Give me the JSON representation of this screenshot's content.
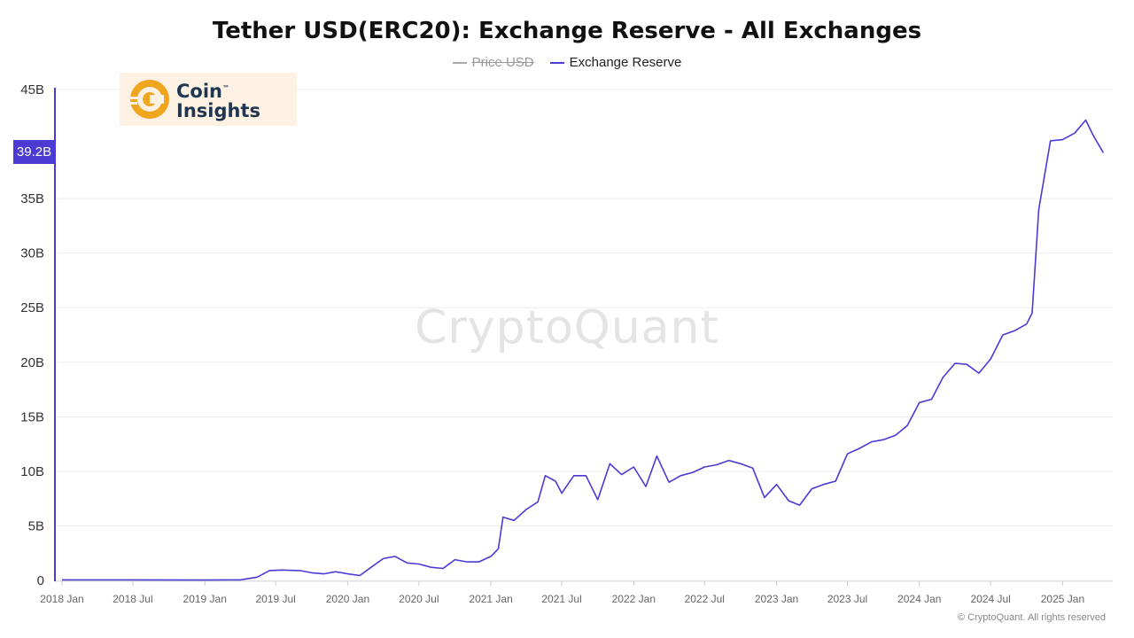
{
  "chart_data": {
    "type": "line",
    "title": "Tether USD(ERC20): Exchange Reserve - All Exchanges",
    "legend": [
      {
        "name": "Price USD",
        "color": "#aaaaaa",
        "hidden": true
      },
      {
        "name": "Exchange Reserve",
        "color": "#4b3ad3",
        "hidden": false
      }
    ],
    "legend_position": "top-center",
    "current_value_label": "39.2B",
    "y_ticks": [
      "0",
      "5B",
      "10B",
      "15B",
      "20B",
      "25B",
      "30B",
      "35B",
      "45B"
    ],
    "y_tick_values": [
      0,
      5,
      10,
      15,
      20,
      25,
      30,
      35,
      45
    ],
    "ylim": [
      0,
      45
    ],
    "y_unit": "billions USD",
    "x_ticks": [
      "2018 Jan",
      "2018 Jul",
      "2019 Jan",
      "2019 Jul",
      "2020 Jan",
      "2020 Jul",
      "2021 Jan",
      "2021 Jul",
      "2022 Jan",
      "2022 Jul",
      "2023 Jan",
      "2023 Jul",
      "2024 Jan",
      "2024 Jul",
      "2025 Jan"
    ],
    "x_tick_dates": [
      "2018-01-01",
      "2018-07-01",
      "2019-01-01",
      "2019-07-01",
      "2020-01-01",
      "2020-07-01",
      "2021-01-01",
      "2021-07-01",
      "2022-01-01",
      "2022-07-01",
      "2023-01-01",
      "2023-07-01",
      "2024-01-01",
      "2024-07-01",
      "2025-01-01"
    ],
    "xlim": [
      "2018-01-01",
      "2025-04-30"
    ],
    "grid": "horizontal",
    "series": [
      {
        "name": "Exchange Reserve",
        "color": "#4b3ad3",
        "points": [
          [
            "2018-01-01",
            0.05
          ],
          [
            "2018-07-01",
            0.05
          ],
          [
            "2019-01-01",
            0.03
          ],
          [
            "2019-04-01",
            0.05
          ],
          [
            "2019-05-15",
            0.3
          ],
          [
            "2019-06-15",
            0.9
          ],
          [
            "2019-07-15",
            0.95
          ],
          [
            "2019-09-01",
            0.9
          ],
          [
            "2019-10-01",
            0.7
          ],
          [
            "2019-11-01",
            0.6
          ],
          [
            "2019-12-01",
            0.8
          ],
          [
            "2020-01-01",
            0.6
          ],
          [
            "2020-02-01",
            0.45
          ],
          [
            "2020-03-01",
            1.2
          ],
          [
            "2020-04-01",
            2.0
          ],
          [
            "2020-05-01",
            2.2
          ],
          [
            "2020-06-01",
            1.6
          ],
          [
            "2020-07-01",
            1.5
          ],
          [
            "2020-08-01",
            1.2
          ],
          [
            "2020-09-01",
            1.1
          ],
          [
            "2020-10-01",
            1.9
          ],
          [
            "2020-11-01",
            1.7
          ],
          [
            "2020-12-01",
            1.7
          ],
          [
            "2021-01-01",
            2.2
          ],
          [
            "2021-01-20",
            2.9
          ],
          [
            "2021-02-01",
            5.8
          ],
          [
            "2021-03-01",
            5.5
          ],
          [
            "2021-04-01",
            6.5
          ],
          [
            "2021-05-01",
            7.2
          ],
          [
            "2021-05-20",
            9.6
          ],
          [
            "2021-06-15",
            9.1
          ],
          [
            "2021-07-01",
            8.0
          ],
          [
            "2021-08-01",
            9.6
          ],
          [
            "2021-09-01",
            9.6
          ],
          [
            "2021-10-01",
            7.4
          ],
          [
            "2021-11-01",
            10.7
          ],
          [
            "2021-12-01",
            9.7
          ],
          [
            "2022-01-01",
            10.4
          ],
          [
            "2022-02-01",
            8.6
          ],
          [
            "2022-03-01",
            11.4
          ],
          [
            "2022-04-01",
            9.0
          ],
          [
            "2022-05-01",
            9.6
          ],
          [
            "2022-06-01",
            9.9
          ],
          [
            "2022-07-01",
            10.4
          ],
          [
            "2022-08-01",
            10.6
          ],
          [
            "2022-09-01",
            11.0
          ],
          [
            "2022-10-01",
            10.7
          ],
          [
            "2022-11-01",
            10.3
          ],
          [
            "2022-12-01",
            7.6
          ],
          [
            "2023-01-01",
            8.8
          ],
          [
            "2023-02-01",
            7.3
          ],
          [
            "2023-03-01",
            6.9
          ],
          [
            "2023-04-01",
            8.4
          ],
          [
            "2023-05-01",
            8.8
          ],
          [
            "2023-06-01",
            9.1
          ],
          [
            "2023-07-01",
            11.6
          ],
          [
            "2023-08-01",
            12.1
          ],
          [
            "2023-09-01",
            12.7
          ],
          [
            "2023-10-01",
            12.9
          ],
          [
            "2023-11-01",
            13.3
          ],
          [
            "2023-12-01",
            14.2
          ],
          [
            "2024-01-01",
            16.3
          ],
          [
            "2024-02-01",
            16.6
          ],
          [
            "2024-03-01",
            18.6
          ],
          [
            "2024-04-01",
            19.9
          ],
          [
            "2024-05-01",
            19.8
          ],
          [
            "2024-06-01",
            19.0
          ],
          [
            "2024-07-01",
            20.3
          ],
          [
            "2024-08-01",
            22.5
          ],
          [
            "2024-09-01",
            22.9
          ],
          [
            "2024-10-01",
            23.5
          ],
          [
            "2024-10-15",
            24.5
          ],
          [
            "2024-11-01",
            34.0
          ],
          [
            "2024-12-01",
            40.3
          ],
          [
            "2025-01-01",
            40.4
          ],
          [
            "2025-02-01",
            41.0
          ],
          [
            "2025-03-01",
            42.2
          ],
          [
            "2025-03-20",
            40.8
          ],
          [
            "2025-04-15",
            39.2
          ]
        ]
      }
    ]
  },
  "branding": {
    "logo_line1": "Coin",
    "logo_line2": "Insights",
    "logo_tm": "™",
    "logo_color": "#f0a51e",
    "watermark": "CryptoQuant",
    "copyright": "© CryptoQuant. All rights reserved"
  }
}
